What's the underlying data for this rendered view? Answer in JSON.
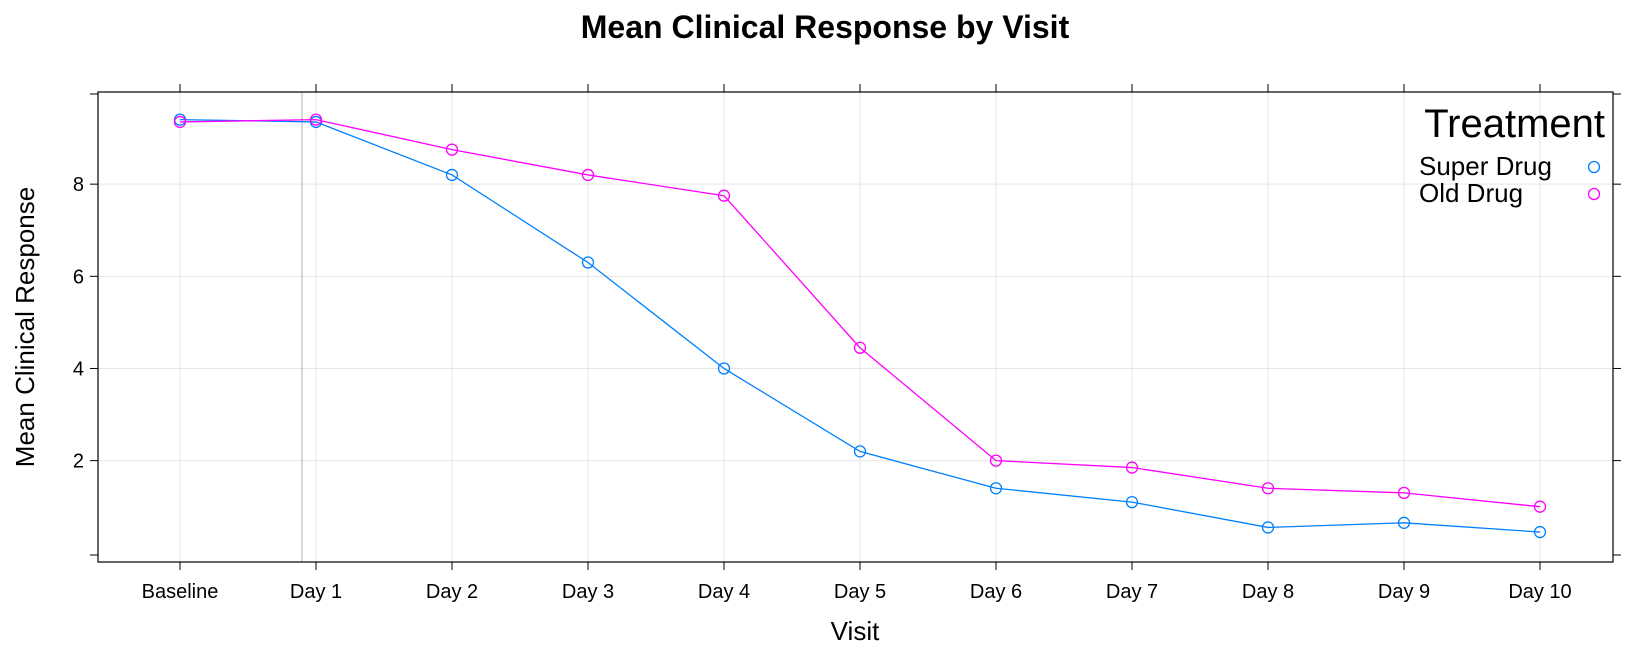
{
  "chart_data": {
    "type": "line",
    "title": "Mean Clinical Response by Visit",
    "xlabel": "Visit",
    "ylabel": "Mean Clinical Response",
    "categories": [
      "Baseline",
      "Day 1",
      "Day 2",
      "Day 3",
      "Day 4",
      "Day 5",
      "Day 6",
      "Day 7",
      "Day 8",
      "Day 9",
      "Day 10"
    ],
    "yticks": [
      2,
      4,
      6,
      8
    ],
    "ylim": [
      -0.2,
      10.0
    ],
    "grid": true,
    "legend": {
      "title": "Treatment",
      "position": "top-right"
    },
    "series": [
      {
        "name": "Super Drug",
        "color": "#0080ff",
        "marker": "open-circle",
        "values": [
          9.4,
          9.35,
          8.2,
          6.3,
          4.0,
          2.2,
          1.4,
          1.1,
          0.55,
          0.65,
          0.45
        ]
      },
      {
        "name": "Old Drug",
        "color": "#ff00ff",
        "marker": "open-circle",
        "values": [
          9.35,
          9.4,
          8.75,
          8.2,
          7.75,
          4.45,
          2.0,
          1.85,
          1.4,
          1.3,
          1.0
        ]
      }
    ]
  }
}
